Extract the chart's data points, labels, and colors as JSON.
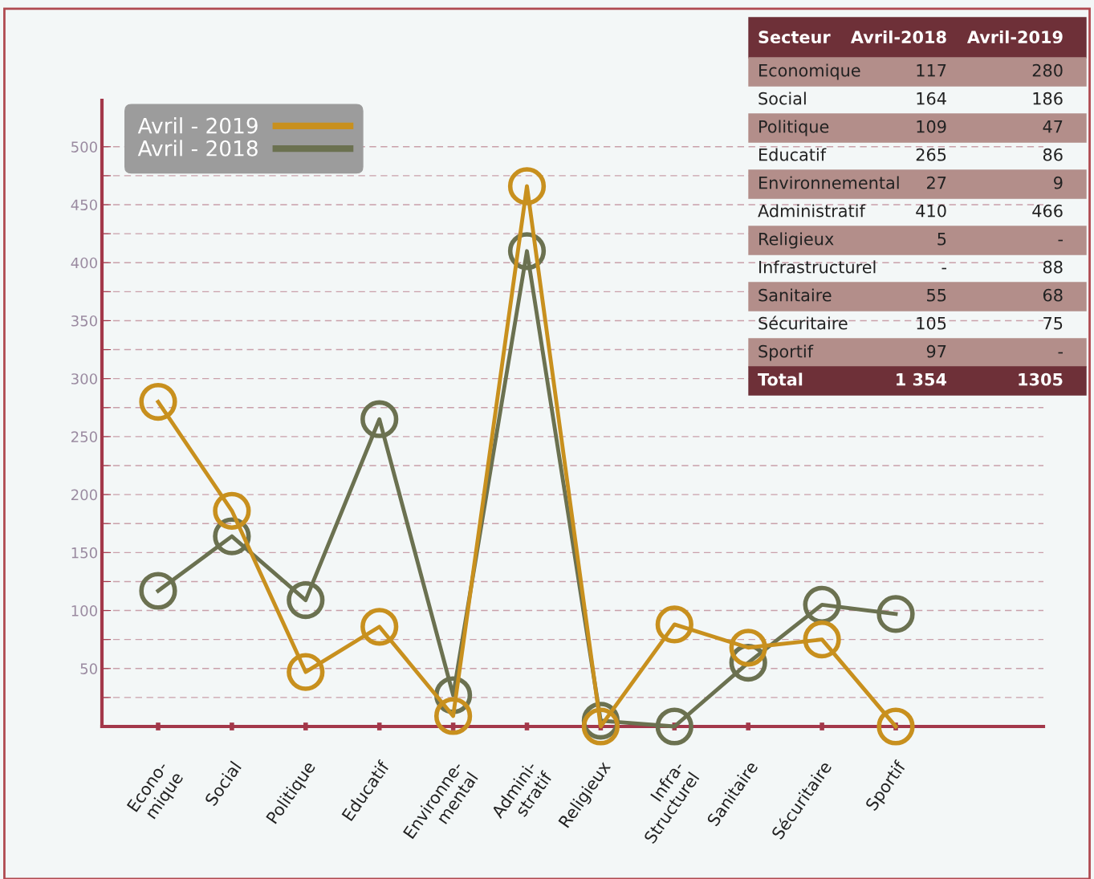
{
  "chart_data": {
    "type": "line",
    "categories": [
      "Econo-\nmique",
      "Social",
      "Politique",
      "Educatif",
      "Environne-\nmental",
      "Admini-\nstratif",
      "Religieux",
      "Infra-\nStructurel",
      "Sanitaire",
      "Sécuritaire",
      "Sportif"
    ],
    "series": [
      {
        "name": "Avril - 2019",
        "color": "#c8901e",
        "values": [
          280,
          186,
          47,
          86,
          9,
          466,
          0,
          88,
          68,
          75,
          0
        ]
      },
      {
        "name": "Avril - 2018",
        "color": "#6b7150",
        "values": [
          117,
          164,
          109,
          265,
          27,
          410,
          5,
          0,
          55,
          105,
          97
        ]
      }
    ],
    "ylim": [
      0,
      540
    ],
    "yticks": [
      {
        "value": 25,
        "label": null
      },
      50,
      {
        "value": 75,
        "label": null
      },
      100,
      {
        "value": 125,
        "label": null
      },
      150,
      {
        "value": 175,
        "label": null
      },
      200,
      {
        "value": 225,
        "label": null
      },
      250,
      {
        "value": 275,
        "label": null
      },
      300,
      {
        "value": 325,
        "label": null
      },
      350,
      {
        "value": 375,
        "label": null
      },
      400,
      {
        "value": 425,
        "label": null
      },
      450,
      {
        "value": 475,
        "label": null
      },
      500
    ],
    "grid": "y",
    "line_style": "solid",
    "marker": "circle",
    "legend": "top left",
    "annotations": [
      "Secteur",
      "Avril-2018",
      "Avril-2019",
      "Economique",
      "117",
      "280",
      "Social",
      "164",
      "186",
      "Politique",
      "109",
      "47",
      "Educatif",
      "265",
      "86",
      "Environnemental",
      "27",
      "9",
      "Administratif",
      "410",
      "466",
      "Religieux",
      "5",
      "-",
      "Infrastructurel",
      "-",
      "88",
      "Sanitaire",
      "55",
      "68",
      "Sécuritaire",
      "105",
      "75",
      "Sportif",
      "97",
      "-",
      "Total",
      "1 354",
      "1305"
    ]
  }
}
